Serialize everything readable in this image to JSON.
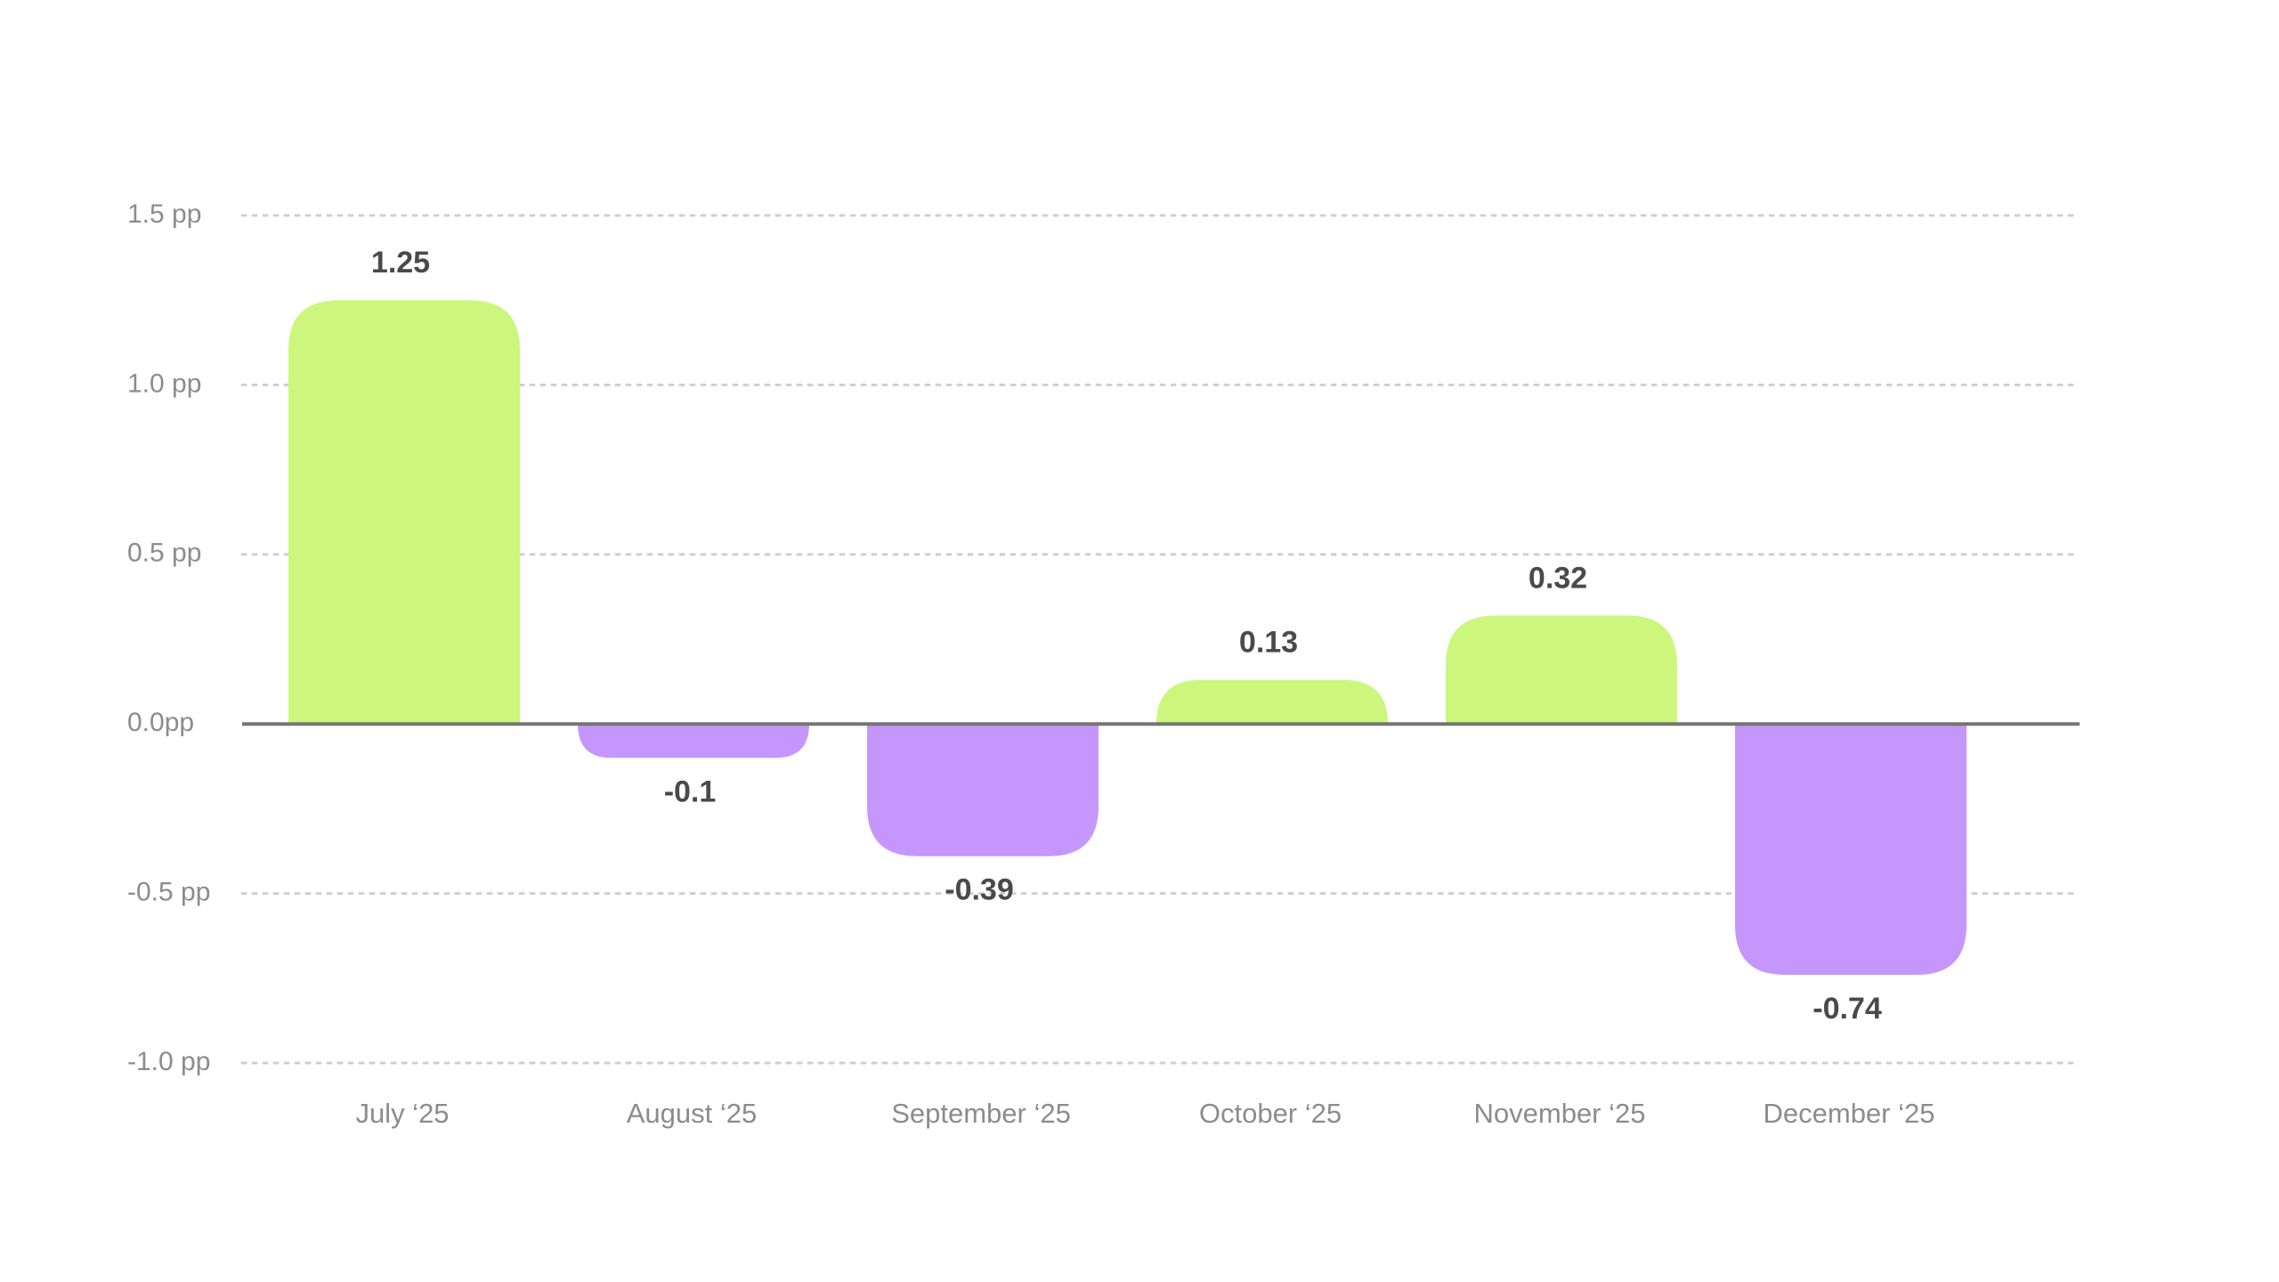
{
  "chart_data": {
    "type": "bar",
    "categories": [
      "July ‘25",
      "August ‘25",
      "September ‘25",
      "October ‘25",
      "November ‘25",
      "December ‘25"
    ],
    "values": [
      1.25,
      -0.1,
      -0.39,
      0.13,
      0.32,
      -0.74
    ],
    "data_labels": [
      "1.25",
      "-0.1",
      "-0.39",
      "0.13",
      "0.32",
      "-0.74"
    ],
    "y_ticks": [
      {
        "value": 1.5,
        "label": "1.5 pp"
      },
      {
        "value": 1.0,
        "label": "1.0 pp"
      },
      {
        "value": 0.5,
        "label": "0.5 pp"
      },
      {
        "value": 0.0,
        "label": "0.0pp"
      },
      {
        "value": -0.5,
        "label": "-0.5 pp"
      },
      {
        "value": -1.0,
        "label": "-1.0 pp"
      }
    ],
    "ylim": [
      -1.0,
      1.5
    ],
    "title": "",
    "xlabel": "",
    "ylabel": "",
    "grid": true,
    "legend": "none",
    "colors": {
      "positive": "#ccf77c",
      "negative": "#c597fc",
      "grid": "#cfcfcf",
      "zero_line": "#757575",
      "tick_text": "#8c8c8c",
      "label_text": "#4a4a4a"
    }
  }
}
